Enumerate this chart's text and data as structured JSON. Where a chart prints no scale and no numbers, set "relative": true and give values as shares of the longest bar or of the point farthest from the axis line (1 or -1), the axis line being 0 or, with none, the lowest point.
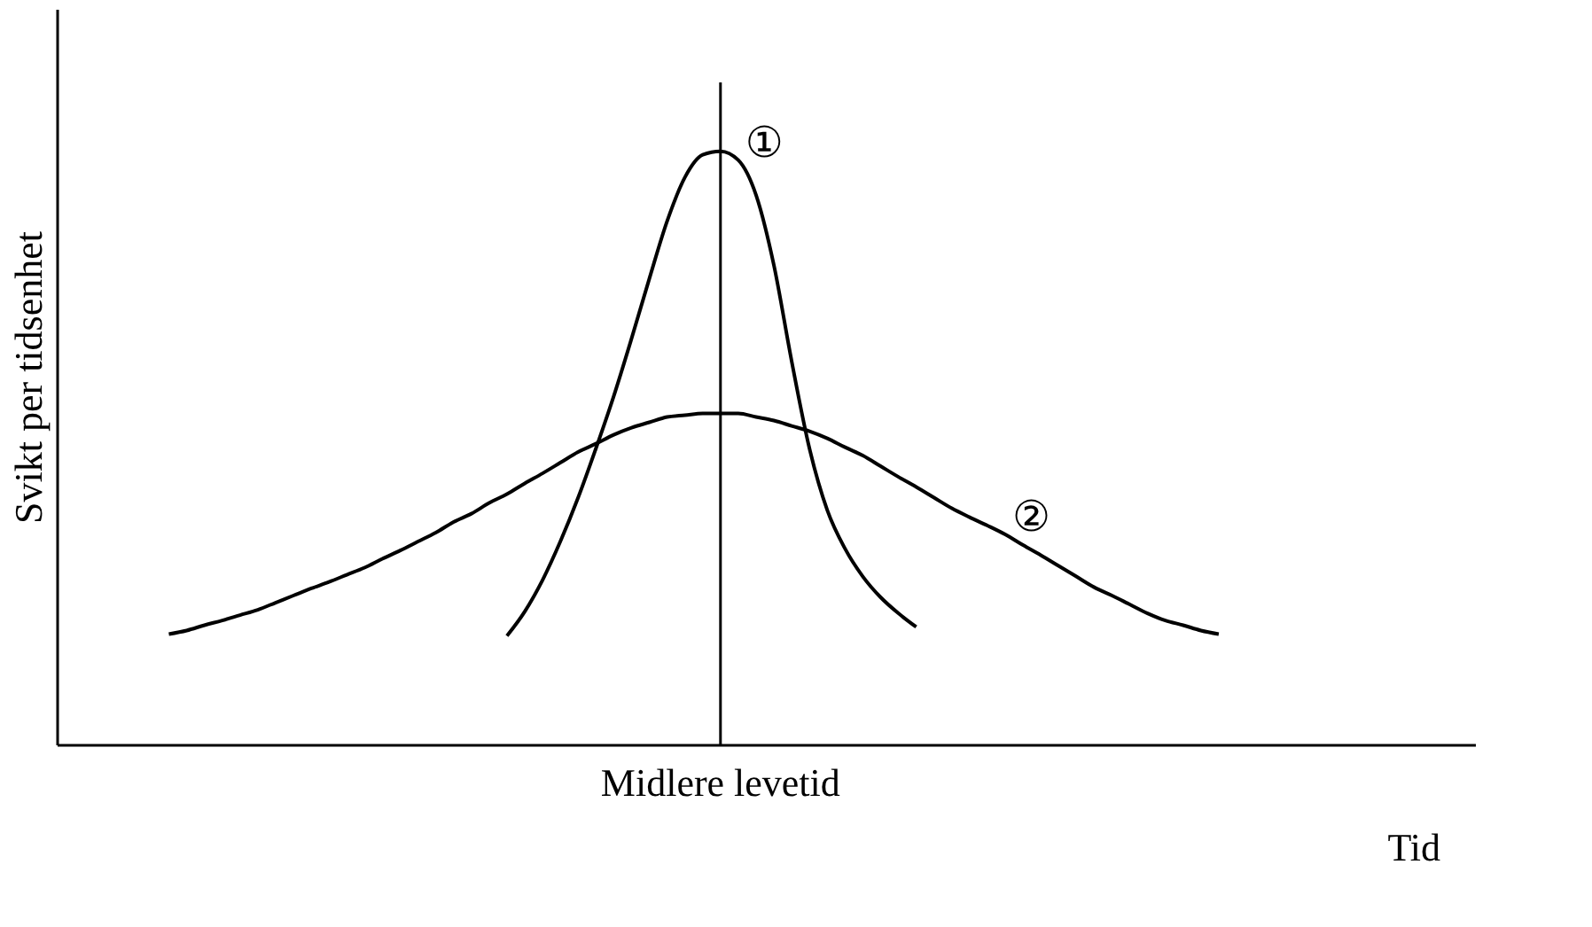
{
  "chart_data": {
    "type": "line",
    "relative": true,
    "xlabel": "Tid",
    "ylabel": "Svikt per tidsenhet",
    "categories": [
      null,
      null,
      null,
      null,
      null,
      null,
      null,
      null,
      null,
      null,
      null,
      null,
      null,
      null,
      null,
      null,
      null,
      null,
      null,
      null,
      null,
      null,
      null,
      null,
      null,
      null,
      null,
      null,
      null,
      null,
      null,
      null,
      null,
      null,
      null,
      null,
      null,
      null,
      null,
      null,
      null,
      null,
      null,
      null,
      null,
      null,
      null,
      null,
      null,
      null,
      null,
      null,
      null,
      null,
      null,
      null,
      null,
      null,
      null,
      null
    ],
    "series": [
      {
        "name": "①",
        "color": "#000000",
        "values": [
          null,
          null,
          null,
          null,
          null,
          null,
          null,
          null,
          null,
          null,
          null,
          null,
          null,
          null,
          null,
          null,
          null,
          null,
          null,
          0.183,
          0.224,
          0.277,
          0.342,
          0.416,
          0.499,
          0.587,
          0.684,
          0.785,
          0.882,
          0.956,
          0.994,
          1,
          0.985,
          0.926,
          0.808,
          0.646,
          0.499,
          0.395,
          0.33,
          0.283,
          0.248,
          0.221,
          0.198,
          null,
          null,
          null,
          null,
          null,
          null,
          null,
          null,
          null,
          null,
          null,
          null,
          null,
          null,
          null,
          null,
          null
        ]
      },
      {
        "name": "②",
        "color": "#000000",
        "values": [
          0.186,
          0.192,
          0.201,
          0.209,
          0.218,
          0.227,
          0.239,
          0.251,
          0.263,
          0.274,
          0.286,
          0.298,
          0.313,
          0.327,
          0.342,
          0.357,
          0.375,
          0.389,
          0.407,
          0.422,
          0.44,
          0.457,
          0.475,
          0.493,
          0.507,
          0.522,
          0.534,
          0.543,
          0.552,
          0.555,
          0.558,
          0.558,
          0.558,
          0.552,
          0.546,
          0.537,
          0.528,
          0.516,
          0.501,
          0.487,
          0.469,
          0.451,
          0.434,
          0.416,
          0.398,
          0.383,
          0.369,
          0.354,
          0.336,
          0.319,
          0.301,
          0.283,
          0.265,
          0.251,
          0.236,
          0.221,
          0.209,
          0.201,
          0.192,
          0.186
        ]
      }
    ],
    "annotations": [
      "Midlere levetid"
    ],
    "legend": false
  }
}
